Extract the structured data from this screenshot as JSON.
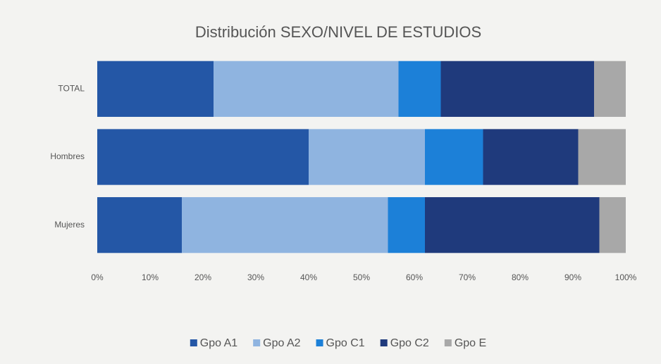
{
  "chart_data": {
    "type": "stacked_bar_horizontal",
    "title": "Distribución SEXO/NIVEL DE ESTUDIOS",
    "categories": [
      "TOTAL",
      "Hombres",
      "Mujeres"
    ],
    "series": [
      {
        "name": "Gpo A1",
        "color": "#2457a6",
        "values": [
          22,
          40,
          16
        ]
      },
      {
        "name": "Gpo A2",
        "color": "#8fb4e0",
        "values": [
          35,
          22,
          39
        ]
      },
      {
        "name": "Gpo C1",
        "color": "#1c80d8",
        "values": [
          8,
          11,
          7
        ]
      },
      {
        "name": "Gpo C2",
        "color": "#1f3a7c",
        "values": [
          29,
          18,
          33
        ]
      },
      {
        "name": "Gpo E",
        "color": "#a8a8a8",
        "values": [
          6,
          9,
          5
        ]
      }
    ],
    "xlim": [
      0,
      100
    ],
    "xticks": [
      {
        "value": 0,
        "label": "0%"
      },
      {
        "value": 10,
        "label": "10%"
      },
      {
        "value": 20,
        "label": "20%"
      },
      {
        "value": 30,
        "label": "30%"
      },
      {
        "value": 40,
        "label": "40%"
      },
      {
        "value": 50,
        "label": "50%"
      },
      {
        "value": 60,
        "label": "60%"
      },
      {
        "value": 70,
        "label": "70%"
      },
      {
        "value": 80,
        "label": "80%"
      },
      {
        "value": 90,
        "label": "90%"
      },
      {
        "value": 100,
        "label": "100%"
      }
    ],
    "grid": false,
    "legend": "bottom"
  }
}
